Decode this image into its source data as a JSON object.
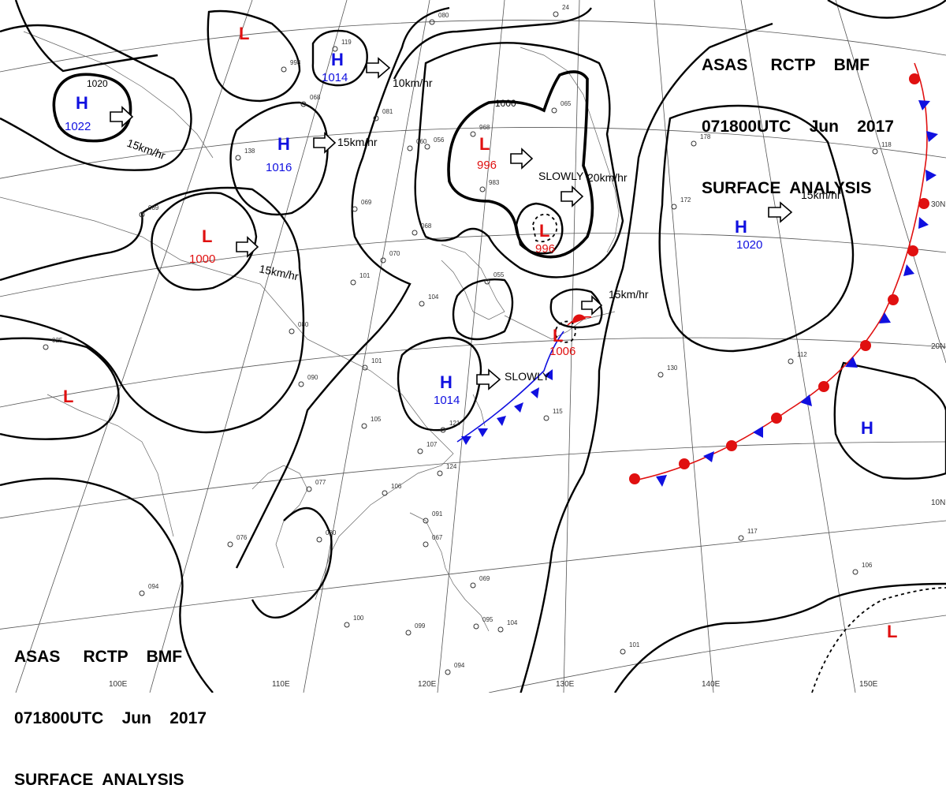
{
  "header": {
    "line1": "ASAS     RCTP    BMF",
    "line2": "071800UTC    Jun    2017",
    "line3": "SURFACE  ANALYSIS"
  },
  "footer": {
    "line1": "ASAS     RCTP    BMF",
    "line2": "071800UTC    Jun    2017",
    "line3": "SURFACE  ANALYSIS"
  },
  "colors": {
    "high": "#1010e0",
    "low": "#e01010",
    "isobar": "#000000"
  },
  "pressure_centers": [
    {
      "type": "H",
      "value": "1022"
    },
    {
      "type": "H",
      "value": "1016"
    },
    {
      "type": "H",
      "value": "1014"
    },
    {
      "type": "H",
      "value": "1014"
    },
    {
      "type": "H",
      "value": "1020"
    },
    {
      "type": "H",
      "value": ""
    },
    {
      "type": "L",
      "value": ""
    },
    {
      "type": "L",
      "value": "1000"
    },
    {
      "type": "L",
      "value": "996"
    },
    {
      "type": "L",
      "value": "996"
    },
    {
      "type": "L",
      "value": "1006"
    },
    {
      "type": "L",
      "value": ""
    },
    {
      "type": "L",
      "value": ""
    }
  ],
  "motion_labels": [
    "15km/hr",
    "15km/hr",
    "10km/hr",
    "15km/hr",
    "SLOWLY",
    "20km/hr",
    "15km/hr",
    "15km/hr",
    "SLOWLY"
  ],
  "isobar_labels": [
    "1020",
    "1000"
  ],
  "latitude_labels": [
    "30N",
    "20N",
    "10N"
  ],
  "longitude_labels": [
    "100E",
    "110E",
    "120E",
    "130E",
    "140E",
    "150E"
  ],
  "stations": [
    "080",
    "24",
    "998",
    "119",
    "081",
    "068",
    "060",
    "138",
    "065",
    "056",
    "968",
    "983",
    "069",
    "068",
    "070",
    "055",
    "101",
    "104",
    "080",
    "101",
    "090",
    "105",
    "121",
    "107",
    "124",
    "106",
    "077",
    "080",
    "076",
    "091",
    "067",
    "069",
    "099",
    "095",
    "100",
    "094",
    "094",
    "104",
    "130",
    "115",
    "117",
    "101",
    "106",
    "172",
    "178",
    "118",
    "025",
    "089",
    "112"
  ]
}
